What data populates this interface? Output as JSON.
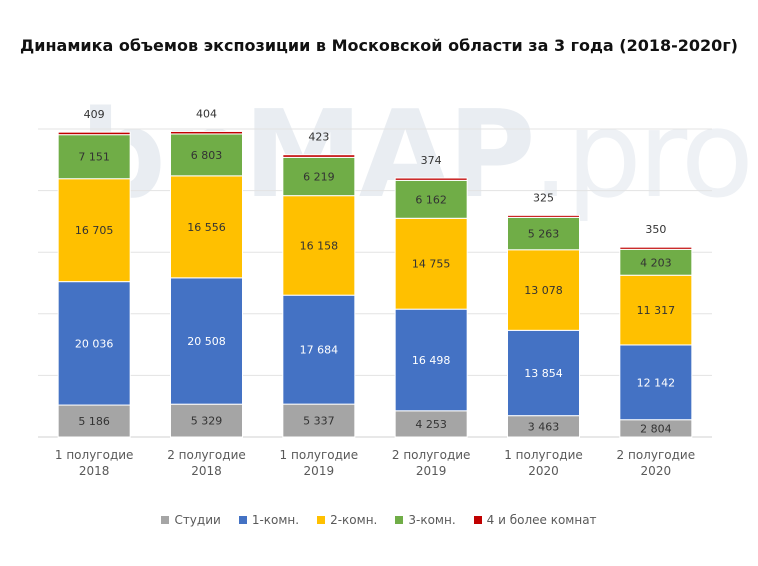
{
  "chart_data": {
    "type": "bar",
    "stacked": true,
    "title": "Динамика объемов экспозиции в Московской области за 3 года (2018-2020г)",
    "categories": [
      [
        "1 полугодие",
        "2018"
      ],
      [
        "2 полугодие",
        "2018"
      ],
      [
        "1 полугодие",
        "2019"
      ],
      [
        "2 полугодие",
        "2019"
      ],
      [
        "1 полугодие",
        "2020"
      ],
      [
        "2 полугодие",
        "2020"
      ]
    ],
    "series": [
      {
        "name": "Студии",
        "color": "#a5a5a5",
        "values": [
          5186,
          5329,
          5337,
          4253,
          3463,
          2804
        ],
        "labels": [
          "5 186",
          "5 329",
          "5 337",
          "4 253",
          "3 463",
          "2 804"
        ]
      },
      {
        "name": "1-комн.",
        "color": "#4472c4",
        "values": [
          20036,
          20508,
          17684,
          16498,
          13854,
          12142
        ],
        "labels": [
          "20 036",
          "20 508",
          "17 684",
          "16 498",
          "13 854",
          "12 142"
        ]
      },
      {
        "name": "2-комн.",
        "color": "#ffc000",
        "values": [
          16705,
          16556,
          16158,
          14755,
          13078,
          11317
        ],
        "labels": [
          "16 705",
          "16 556",
          "16 158",
          "14 755",
          "13 078",
          "11 317"
        ]
      },
      {
        "name": "3-комн.",
        "color": "#70ad47",
        "values": [
          7151,
          6803,
          6219,
          6162,
          5263,
          4203
        ],
        "labels": [
          "7 151",
          "6 803",
          "6 219",
          "6 162",
          "5 263",
          "4 203"
        ]
      },
      {
        "name": "4 и более комнат",
        "color": "#c00000",
        "values": [
          409,
          404,
          423,
          374,
          325,
          350
        ],
        "labels": [
          "409",
          "404",
          "423",
          "374",
          "325",
          "350"
        ]
      }
    ],
    "ylim": [
      0,
      50000
    ],
    "grid": true,
    "legend": "bottom",
    "watermark": "bnMAP.pro"
  }
}
